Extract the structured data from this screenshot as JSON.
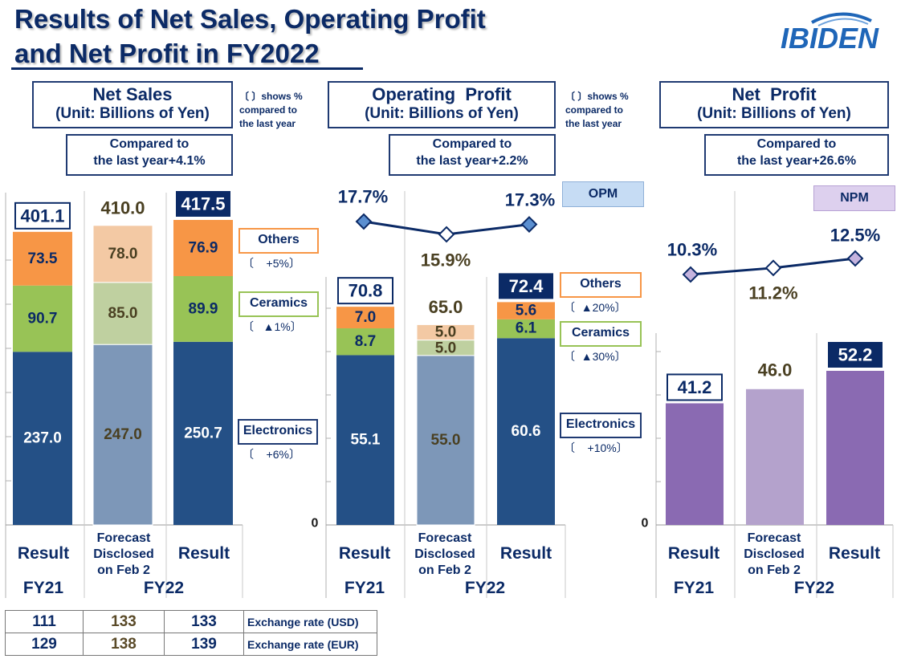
{
  "title": "Results of Net Sales, Operating Profit\nand Net Profit in FY2022",
  "logo_text": "IBIDEN",
  "colors": {
    "electronics": "#245086",
    "electronics_forecast": "#7d97b8",
    "ceramics": "#98c356",
    "ceramics_forecast": "#bfd0a0",
    "others": "#f79646",
    "others_forecast": "#f3c9a4",
    "net_profit": "#8a6ab2",
    "net_profit_forecast": "#b4a2cc",
    "line": "#0b2a66",
    "opm_marker": "#5b8fd0",
    "npm_marker": "#c5b3de"
  },
  "notes": {
    "shows_pct": "〔   〕shows %\ncompared to\nthe  last year"
  },
  "labels": {
    "others": "Others",
    "ceramics": "Ceramics",
    "electronics": "Electronics",
    "opm": "OPM",
    "npm": "NPM"
  },
  "x_labels": {
    "result": "Result",
    "forecast": "Forecast\nDisclosed\non Feb 2",
    "fy21": "FY21",
    "fy22": "FY22"
  },
  "exchange": {
    "rows": [
      {
        "fy21": "111",
        "forecast": "133",
        "fy22": "133",
        "label": "Exchange rate (USD)"
      },
      {
        "fy21": "129",
        "forecast": "138",
        "fy22": "139",
        "label": "Exchange rate (EUR)"
      }
    ]
  },
  "chart_data": [
    {
      "type": "bar",
      "stacked": true,
      "title": "Net Sales",
      "subtitle": "(Unit: Billions of Yen)",
      "comparison": "Compared to\nthe last year+4.1%",
      "categories": [
        "Result FY21",
        "Forecast Disclosed on Feb 2 FY22",
        "Result FY22"
      ],
      "series": [
        {
          "name": "Electronics",
          "values": [
            237.0,
            247.0,
            250.7
          ],
          "yoy": "〔    +6%〕"
        },
        {
          "name": "Ceramics",
          "values": [
            90.7,
            85.0,
            89.9
          ],
          "yoy": "〔   ▲1%〕"
        },
        {
          "name": "Others",
          "values": [
            73.5,
            78.0,
            76.9
          ],
          "yoy": "〔    +5%〕"
        }
      ],
      "totals": [
        401.1,
        410.0,
        417.5
      ],
      "ylim": [
        0,
        410
      ]
    },
    {
      "type": "bar",
      "stacked": true,
      "title": "Operating  Profit",
      "subtitle": "(Unit: Billions of Yen)",
      "comparison": "Compared to\nthe last year+2.2%",
      "categories": [
        "Result FY21",
        "Forecast Disclosed on Feb 2 FY22",
        "Result FY22"
      ],
      "series": [
        {
          "name": "Electronics",
          "values": [
            55.1,
            55.0,
            60.6
          ],
          "yoy": "〔    +10%〕"
        },
        {
          "name": "Ceramics",
          "values": [
            8.7,
            5.0,
            6.1
          ],
          "yoy": "〔  ▲30%〕"
        },
        {
          "name": "Others",
          "values": [
            7.0,
            5.0,
            5.6
          ],
          "yoy": "〔  ▲20%〕"
        }
      ],
      "totals": [
        70.8,
        65.0,
        72.4
      ],
      "ylim": [
        0,
        90
      ],
      "y_zero_label": "0",
      "opm": {
        "name": "OPM",
        "values": [
          17.7,
          15.9,
          17.3
        ],
        "labels": [
          "17.7%",
          "15.9%",
          "17.3%"
        ]
      }
    },
    {
      "type": "bar",
      "title": "Net  Profit",
      "subtitle": "(Unit: Billions of Yen)",
      "comparison": "Compared to\nthe last year+26.6%",
      "categories": [
        "Result FY21",
        "Forecast Disclosed on Feb 2 FY22",
        "Result FY22"
      ],
      "values": [
        41.2,
        46.0,
        52.2
      ],
      "value_labels": [
        "41.2",
        "46.0",
        "52.2"
      ],
      "ylim": [
        0,
        65
      ],
      "y_zero_label": "0",
      "npm": {
        "name": "NPM",
        "values": [
          10.3,
          11.2,
          12.5
        ],
        "labels": [
          "10.3%",
          "11.2%",
          "12.5%"
        ]
      }
    }
  ]
}
